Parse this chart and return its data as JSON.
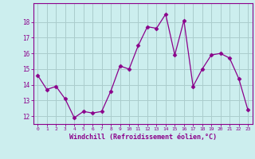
{
  "x": [
    0,
    1,
    2,
    3,
    4,
    5,
    6,
    7,
    8,
    9,
    10,
    11,
    12,
    13,
    14,
    15,
    16,
    17,
    18,
    19,
    20,
    21,
    22,
    23
  ],
  "y": [
    14.6,
    13.7,
    13.9,
    13.1,
    11.9,
    12.3,
    12.2,
    12.3,
    13.6,
    15.2,
    15.0,
    16.5,
    17.7,
    17.6,
    18.5,
    15.9,
    18.1,
    13.9,
    15.0,
    15.9,
    16.0,
    15.7,
    14.4,
    12.4
  ],
  "line_color": "#8B008B",
  "marker": "D",
  "marker_size": 2.5,
  "bg_color": "#cceeee",
  "grid_color": "#aacccc",
  "xlabel": "Windchill (Refroidissement éolien,°C)",
  "xlabel_color": "#8B008B",
  "tick_color": "#8B008B",
  "ylim": [
    11.5,
    19.2
  ],
  "yticks": [
    12,
    13,
    14,
    15,
    16,
    17,
    18
  ],
  "xticks": [
    0,
    1,
    2,
    3,
    4,
    5,
    6,
    7,
    8,
    9,
    10,
    11,
    12,
    13,
    14,
    15,
    16,
    17,
    18,
    19,
    20,
    21,
    22,
    23
  ],
  "xlim": [
    -0.5,
    23.5
  ]
}
